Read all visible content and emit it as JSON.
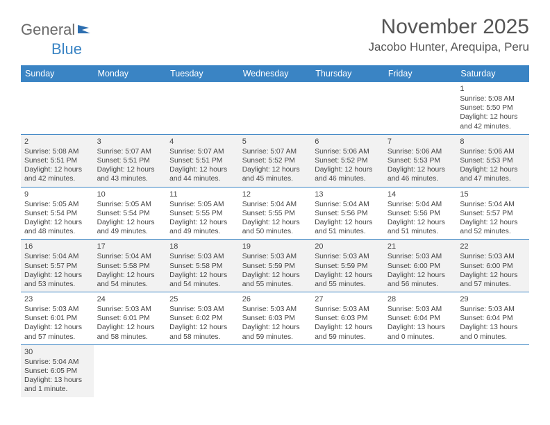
{
  "logo": {
    "part1": "General",
    "part2": "Blue"
  },
  "title": "November 2025",
  "location": "Jacobo Hunter, Arequipa, Peru",
  "weekdays": [
    "Sunday",
    "Monday",
    "Tuesday",
    "Wednesday",
    "Thursday",
    "Friday",
    "Saturday"
  ],
  "colors": {
    "header_bar": "#3a84c4",
    "header_text": "#ffffff",
    "cell_border": "#3a84c4",
    "shaded_bg": "#f2f2f2",
    "body_text": "#444444",
    "title_text": "#555555"
  },
  "layout": {
    "columns": 7,
    "rows": 6,
    "first_weekday_index": 6,
    "days_in_month": 30
  },
  "labels": {
    "sunrise": "Sunrise:",
    "sunset": "Sunset:",
    "daylight": "Daylight:"
  },
  "days": [
    {
      "n": 1,
      "sunrise": "5:08 AM",
      "sunset": "5:50 PM",
      "daylight": "12 hours and 42 minutes."
    },
    {
      "n": 2,
      "sunrise": "5:08 AM",
      "sunset": "5:51 PM",
      "daylight": "12 hours and 42 minutes."
    },
    {
      "n": 3,
      "sunrise": "5:07 AM",
      "sunset": "5:51 PM",
      "daylight": "12 hours and 43 minutes."
    },
    {
      "n": 4,
      "sunrise": "5:07 AM",
      "sunset": "5:51 PM",
      "daylight": "12 hours and 44 minutes."
    },
    {
      "n": 5,
      "sunrise": "5:07 AM",
      "sunset": "5:52 PM",
      "daylight": "12 hours and 45 minutes."
    },
    {
      "n": 6,
      "sunrise": "5:06 AM",
      "sunset": "5:52 PM",
      "daylight": "12 hours and 46 minutes."
    },
    {
      "n": 7,
      "sunrise": "5:06 AM",
      "sunset": "5:53 PM",
      "daylight": "12 hours and 46 minutes."
    },
    {
      "n": 8,
      "sunrise": "5:06 AM",
      "sunset": "5:53 PM",
      "daylight": "12 hours and 47 minutes."
    },
    {
      "n": 9,
      "sunrise": "5:05 AM",
      "sunset": "5:54 PM",
      "daylight": "12 hours and 48 minutes."
    },
    {
      "n": 10,
      "sunrise": "5:05 AM",
      "sunset": "5:54 PM",
      "daylight": "12 hours and 49 minutes."
    },
    {
      "n": 11,
      "sunrise": "5:05 AM",
      "sunset": "5:55 PM",
      "daylight": "12 hours and 49 minutes."
    },
    {
      "n": 12,
      "sunrise": "5:04 AM",
      "sunset": "5:55 PM",
      "daylight": "12 hours and 50 minutes."
    },
    {
      "n": 13,
      "sunrise": "5:04 AM",
      "sunset": "5:56 PM",
      "daylight": "12 hours and 51 minutes."
    },
    {
      "n": 14,
      "sunrise": "5:04 AM",
      "sunset": "5:56 PM",
      "daylight": "12 hours and 51 minutes."
    },
    {
      "n": 15,
      "sunrise": "5:04 AM",
      "sunset": "5:57 PM",
      "daylight": "12 hours and 52 minutes."
    },
    {
      "n": 16,
      "sunrise": "5:04 AM",
      "sunset": "5:57 PM",
      "daylight": "12 hours and 53 minutes."
    },
    {
      "n": 17,
      "sunrise": "5:04 AM",
      "sunset": "5:58 PM",
      "daylight": "12 hours and 54 minutes."
    },
    {
      "n": 18,
      "sunrise": "5:03 AM",
      "sunset": "5:58 PM",
      "daylight": "12 hours and 54 minutes."
    },
    {
      "n": 19,
      "sunrise": "5:03 AM",
      "sunset": "5:59 PM",
      "daylight": "12 hours and 55 minutes."
    },
    {
      "n": 20,
      "sunrise": "5:03 AM",
      "sunset": "5:59 PM",
      "daylight": "12 hours and 55 minutes."
    },
    {
      "n": 21,
      "sunrise": "5:03 AM",
      "sunset": "6:00 PM",
      "daylight": "12 hours and 56 minutes."
    },
    {
      "n": 22,
      "sunrise": "5:03 AM",
      "sunset": "6:00 PM",
      "daylight": "12 hours and 57 minutes."
    },
    {
      "n": 23,
      "sunrise": "5:03 AM",
      "sunset": "6:01 PM",
      "daylight": "12 hours and 57 minutes."
    },
    {
      "n": 24,
      "sunrise": "5:03 AM",
      "sunset": "6:01 PM",
      "daylight": "12 hours and 58 minutes."
    },
    {
      "n": 25,
      "sunrise": "5:03 AM",
      "sunset": "6:02 PM",
      "daylight": "12 hours and 58 minutes."
    },
    {
      "n": 26,
      "sunrise": "5:03 AM",
      "sunset": "6:03 PM",
      "daylight": "12 hours and 59 minutes."
    },
    {
      "n": 27,
      "sunrise": "5:03 AM",
      "sunset": "6:03 PM",
      "daylight": "12 hours and 59 minutes."
    },
    {
      "n": 28,
      "sunrise": "5:03 AM",
      "sunset": "6:04 PM",
      "daylight": "13 hours and 0 minutes."
    },
    {
      "n": 29,
      "sunrise": "5:03 AM",
      "sunset": "6:04 PM",
      "daylight": "13 hours and 0 minutes."
    },
    {
      "n": 30,
      "sunrise": "5:04 AM",
      "sunset": "6:05 PM",
      "daylight": "13 hours and 1 minute."
    }
  ]
}
